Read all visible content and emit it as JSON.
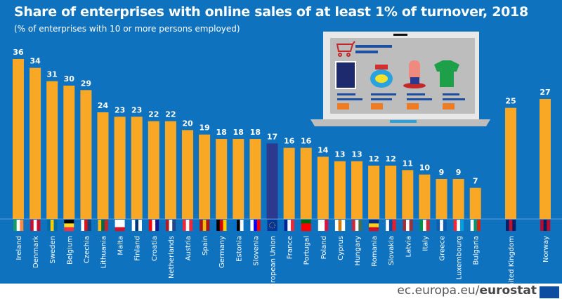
{
  "chart_data": {
    "type": "bar",
    "title": "Share of enterprises with online sales of at least 1% of turnover, 2018",
    "subtitle": "(% of enterprises with 10 or more persons employed)",
    "ylim": [
      0,
      36
    ],
    "grid": false,
    "legend": "none",
    "bar_color": "#f9a825",
    "eu_bar_color": "#2b3a8f",
    "categories": [
      "Ireland",
      "Denmark",
      "Sweden",
      "Belgium",
      "Czechia",
      "Lithuania",
      "Malta",
      "Finland",
      "Croatia",
      "Netherlands",
      "Austria",
      "Spain",
      "Germany",
      "Estonia",
      "Slovenia",
      "European Union",
      "France",
      "Portugal",
      "Poland",
      "Cyprus",
      "Hungary",
      "Romania",
      "Slovakia",
      "Latvia",
      "Italy",
      "Greece",
      "Luxembourg",
      "Bulgaria",
      "United Kingdom",
      "Norway"
    ],
    "values": [
      36,
      34,
      31,
      30,
      29,
      24,
      23,
      23,
      22,
      22,
      20,
      19,
      18,
      18,
      18,
      17,
      16,
      16,
      14,
      13,
      13,
      12,
      12,
      11,
      10,
      9,
      9,
      7,
      25,
      27
    ],
    "value_labels": [
      "36",
      "34",
      "31",
      "30",
      "29",
      "24",
      "23",
      "23",
      "22",
      "22",
      "20",
      "19",
      "18",
      "18",
      "18",
      "17",
      "16",
      "16",
      "14",
      "13",
      "13",
      "12",
      "12",
      "11",
      "10",
      "9",
      "9",
      "7",
      "25",
      "27"
    ]
  },
  "flags": [
    [
      "#169b62",
      "#fff",
      "#ff883e",
      "h"
    ],
    [
      "#c8102e",
      "#fff",
      "#c8102e",
      "h"
    ],
    [
      "#006aa7",
      "#fecc00",
      "#006aa7",
      "h"
    ],
    [
      "#000",
      "#fdda24",
      "#ef3340",
      "v"
    ],
    [
      "#fff",
      "#d7141a",
      "#11457e",
      "h"
    ],
    [
      "#fdb913",
      "#006a44",
      "#c1272d",
      "h"
    ],
    [
      "#fff",
      "#fff",
      "#cf142b",
      "v"
    ],
    [
      "#fff",
      "#003580",
      "#fff",
      "h"
    ],
    [
      "#ff0000",
      "#fff",
      "#171796",
      "h"
    ],
    [
      "#ae1c28",
      "#fff",
      "#21468b",
      "h"
    ],
    [
      "#ed2939",
      "#fff",
      "#ed2939",
      "h"
    ],
    [
      "#aa151b",
      "#f1bf00",
      "#aa151b",
      "h"
    ],
    [
      "#000",
      "#dd0000",
      "#ffce00",
      "h"
    ],
    [
      "#0072ce",
      "#000",
      "#fff",
      "h"
    ],
    [
      "#fff",
      "#0000ff",
      "#ff0000",
      "h"
    ],
    [
      "#003399",
      "#003399",
      "#003399",
      "h"
    ],
    [
      "#002395",
      "#fff",
      "#ed2939",
      "h"
    ],
    [
      "#006600",
      "#ff0000",
      "#ff0000",
      "v"
    ],
    [
      "#fff",
      "#fff",
      "#dc143c",
      "h"
    ],
    [
      "#fff",
      "#d57800",
      "#fff",
      "h"
    ],
    [
      "#ce2939",
      "#fff",
      "#477050",
      "h"
    ],
    [
      "#002b7f",
      "#fcd116",
      "#ce1126",
      "v"
    ],
    [
      "#fff",
      "#0b4ea2",
      "#ee1c25",
      "h"
    ],
    [
      "#9e3039",
      "#fff",
      "#9e3039",
      "h"
    ],
    [
      "#009246",
      "#fff",
      "#ce2b37",
      "h"
    ],
    [
      "#0d5eaf",
      "#fff",
      "#0d5eaf",
      "h"
    ],
    [
      "#ed2939",
      "#fff",
      "#00a1de",
      "h"
    ],
    [
      "#fff",
      "#00966e",
      "#d62612",
      "h"
    ],
    [
      "#012169",
      "#c8102e",
      "#012169",
      "h"
    ],
    [
      "#ba0c2f",
      "#00205b",
      "#ba0c2f",
      "h"
    ]
  ],
  "footer": {
    "domain": "ec.europa.eu/",
    "brand": "eurostat"
  }
}
